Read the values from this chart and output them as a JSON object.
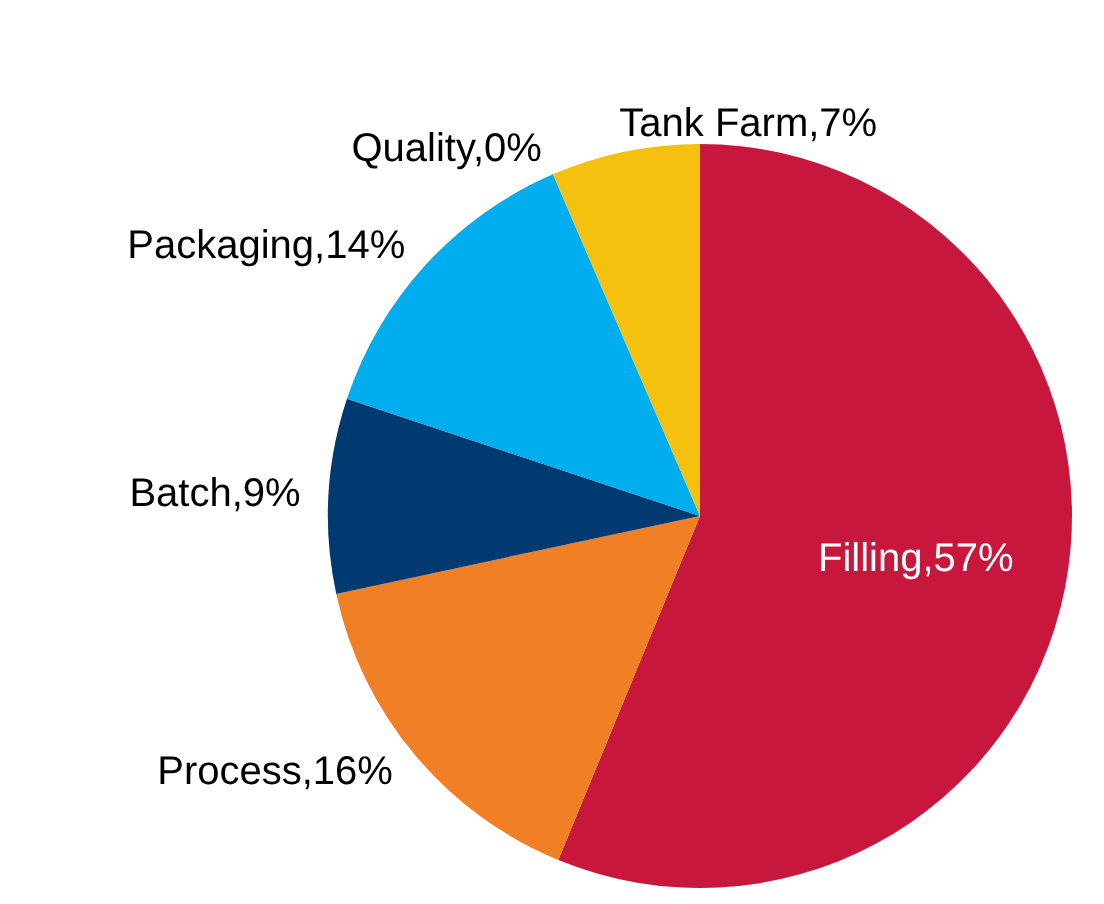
{
  "chart_data": {
    "type": "pie",
    "categories": [
      "Filling",
      "Process",
      "Batch",
      "Packaging",
      "Quality",
      "Tank Farm"
    ],
    "values": [
      56.5,
      15.5,
      8.5,
      13.5,
      0,
      6.5
    ],
    "value_labels": [
      ",57%",
      ",16%",
      ",9%",
      ",14%",
      ",0%",
      ",7%"
    ],
    "colors": [
      "#c8173c",
      "#f07f26",
      "#003a70",
      "#00aeef",
      "#8e8e8e",
      "#f5c10e"
    ],
    "legend": false
  }
}
